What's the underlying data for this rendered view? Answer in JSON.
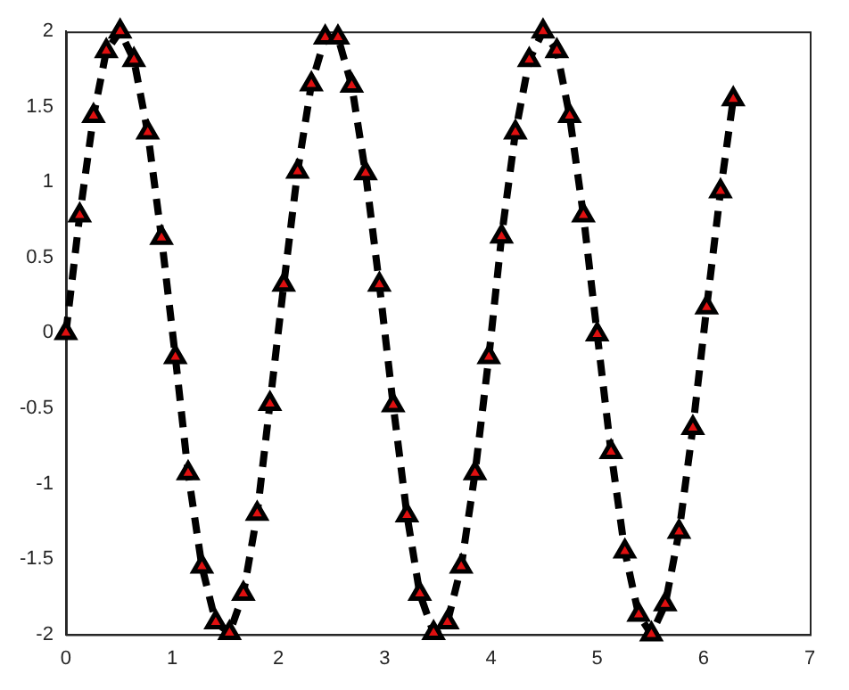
{
  "chart_data": {
    "type": "line",
    "x": [
      0,
      0.13,
      0.26,
      0.38,
      0.51,
      0.64,
      0.77,
      0.9,
      1.03,
      1.15,
      1.28,
      1.41,
      1.54,
      1.67,
      1.8,
      1.92,
      2.05,
      2.18,
      2.31,
      2.44,
      2.56,
      2.69,
      2.82,
      2.95,
      3.08,
      3.21,
      3.33,
      3.46,
      3.59,
      3.72,
      3.85,
      3.98,
      4.1,
      4.23,
      4.36,
      4.49,
      4.62,
      4.74,
      4.87,
      5.0,
      5.13,
      5.26,
      5.39,
      5.51,
      5.64,
      5.77,
      5.9,
      6.03,
      6.16,
      6.28
    ],
    "series": [
      {
        "color": "#000000",
        "values": [
          0,
          0.78,
          1.44,
          1.87,
          2.0,
          1.81,
          1.33,
          0.63,
          -0.16,
          -0.93,
          -1.55,
          -1.92,
          -1.99,
          -1.73,
          -1.2,
          -0.47,
          0.32,
          1.07,
          1.65,
          1.96,
          1.96,
          1.64,
          1.06,
          0.32,
          -0.48,
          -1.21,
          -1.73,
          -1.99,
          -1.92,
          -1.55,
          -0.93,
          -0.16,
          0.64,
          1.33,
          1.81,
          2.0,
          1.87,
          1.44,
          0.78,
          -0.01,
          -0.79,
          -1.45,
          -1.87,
          -2.0,
          -1.8,
          -1.32,
          -0.63,
          0.17,
          0.94,
          1.55
        ]
      }
    ],
    "xlim": [
      0,
      7
    ],
    "xticks": [
      0,
      1,
      2,
      3,
      4,
      5,
      6,
      7
    ],
    "ylim": [
      -2,
      2
    ],
    "yticks": [
      -2,
      -1.5,
      -1,
      -0.5,
      0,
      0.5,
      1,
      1.5,
      2
    ],
    "grid": false,
    "legend": false,
    "marker": "triangle",
    "line_style": "dashed"
  }
}
